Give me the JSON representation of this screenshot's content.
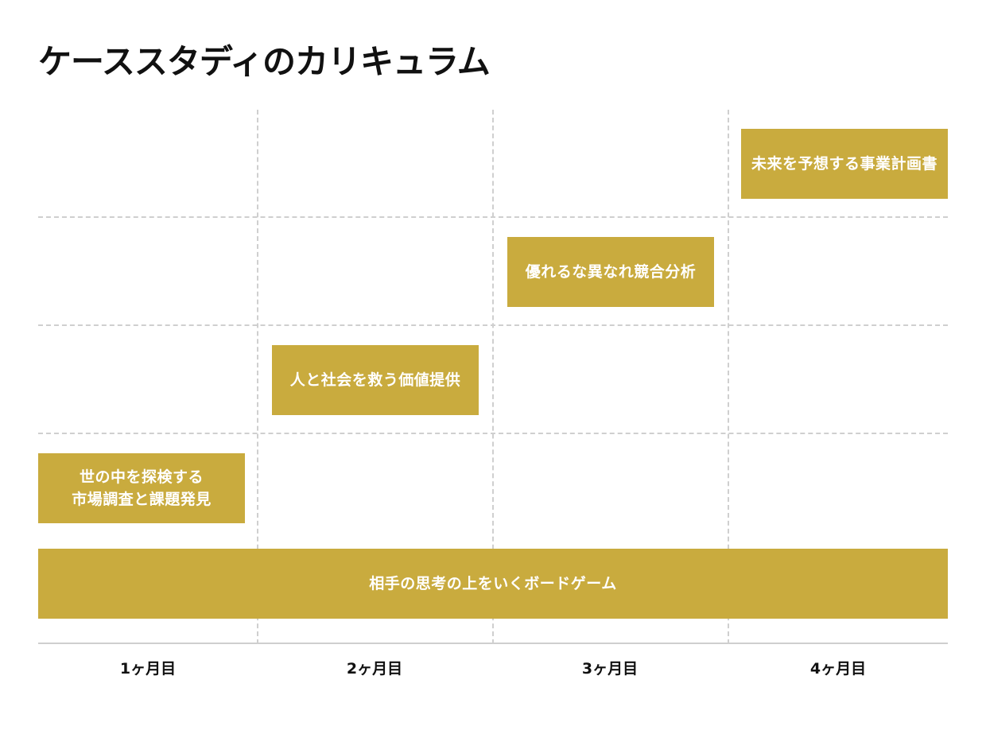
{
  "title": "ケーススタディのカリキュラム",
  "blocks": {
    "board_game": "相手の思考の上をいくボードゲーム",
    "market_research_line1": "世の中を探検する",
    "market_research_line2": "市場調査と課題発見",
    "value_proposition": "人と社会を救う価値提供",
    "competitive_analysis": "優れるな異なれ競合分析",
    "business_plan": "未来を予想する事業計画書"
  },
  "months": [
    "1ヶ月目",
    "2ヶ月目",
    "3ヶ月目",
    "4ヶ月目"
  ],
  "colors": {
    "block": "#c9ab3e",
    "grid": "#cfcfcf",
    "text": "#111111"
  }
}
